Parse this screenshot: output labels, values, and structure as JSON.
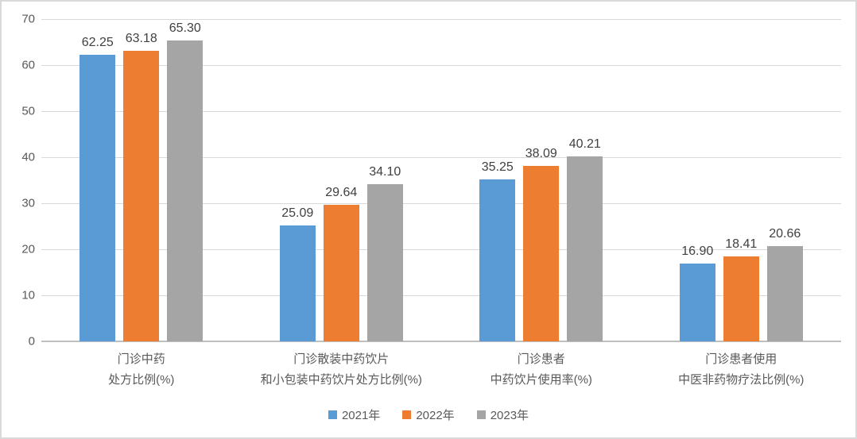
{
  "chart_data": {
    "type": "bar",
    "title": "",
    "xlabel": "",
    "ylabel": "",
    "ylim": [
      0,
      70
    ],
    "ytick_interval": 10,
    "ytick_labels": [
      "0",
      "10",
      "20",
      "30",
      "40",
      "50",
      "60",
      "70"
    ],
    "grid": true,
    "legend_position": "bottom",
    "value_label_decimals": 2,
    "categories": [
      [
        "门诊中药",
        "处方比例(%)"
      ],
      [
        "门诊散装中药饮片",
        "和小包装中药饮片处方比例(%)"
      ],
      [
        "门诊患者",
        "中药饮片使用率(%)"
      ],
      [
        "门诊患者使用",
        "中医非药物疗法比例(%)"
      ]
    ],
    "series": [
      {
        "name": "2021年",
        "color": "#5b9bd5",
        "values": [
          62.25,
          25.09,
          35.25,
          16.9
        ]
      },
      {
        "name": "2022年",
        "color": "#ed7d31",
        "values": [
          63.18,
          29.64,
          38.09,
          18.41
        ]
      },
      {
        "name": "2023年",
        "color": "#a5a5a5",
        "values": [
          65.3,
          34.1,
          40.21,
          20.66
        ]
      }
    ],
    "colors": {
      "gridline": "#d9d9d9",
      "axis_line": "#bfbfbf",
      "tick_text": "#595959",
      "category_text": "#595959",
      "value_label_text": "#404040",
      "legend_text": "#595959",
      "frame_border": "#d9d9d9",
      "background": "#ffffff"
    }
  }
}
